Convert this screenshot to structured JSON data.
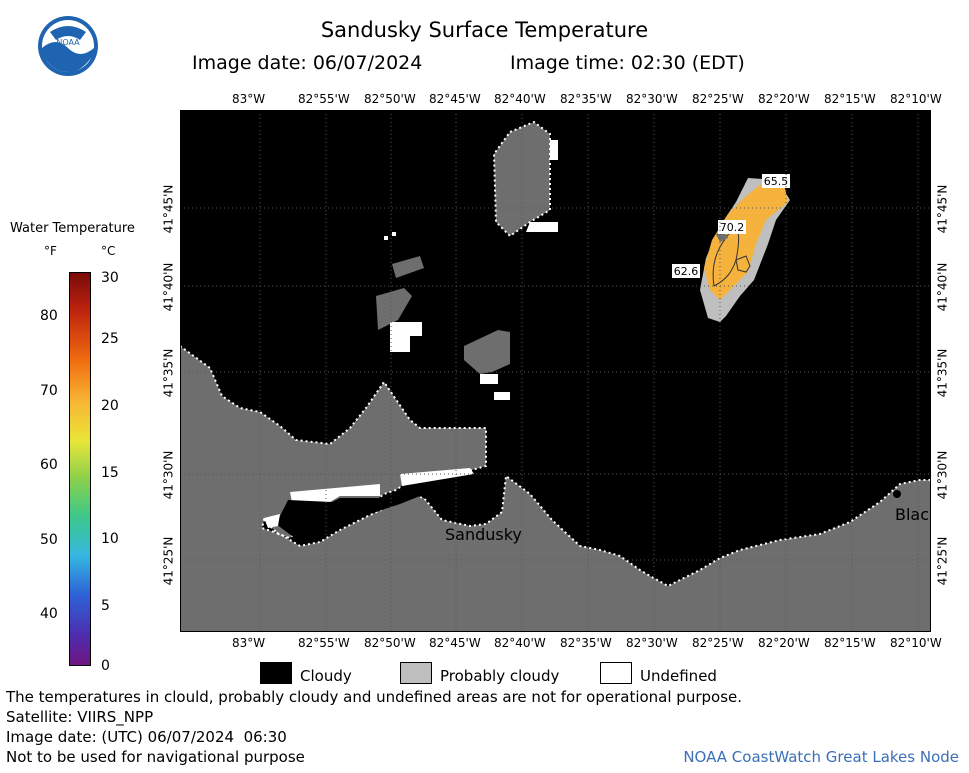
{
  "header": {
    "title": "Sandusky Surface Temperature",
    "image_date": "Image date: 06/07/2024",
    "image_time": "Image time: 02:30 (EDT)"
  },
  "logo": {
    "text": "NOAA"
  },
  "colorbar": {
    "title": "Water Temperature",
    "unit_f": "°F",
    "unit_c": "°C",
    "f_ticks": [
      "80",
      "70",
      "60",
      "50",
      "40"
    ],
    "c_ticks": [
      "30",
      "25",
      "20",
      "15",
      "10",
      "5",
      "0"
    ]
  },
  "axes": {
    "lon_top": [
      "83°W",
      "82°55'W",
      "82°50'W",
      "82°45'W",
      "82°40'W",
      "82°35'W",
      "82°30'W",
      "82°25'W",
      "82°20'W",
      "82°15'W",
      "82°10'W"
    ],
    "lon_bottom": [
      "83°W",
      "82°55'W",
      "82°50'W",
      "82°45'W",
      "82°40'W",
      "82°35'W",
      "82°30'W",
      "82°25'W",
      "82°20'W",
      "82°15'W",
      "82°10'W"
    ],
    "lat_left": [
      "41°45'N",
      "41°40'N",
      "41°35'N",
      "41°30'N",
      "41°25'N"
    ],
    "lat_right": [
      "41°45'N",
      "41°40'N",
      "41°35'N",
      "41°30'N",
      "41°25'N"
    ]
  },
  "map": {
    "place_labels": [
      "Sandusky",
      "Blac"
    ],
    "contour_labels": [
      "65.5",
      "70.2",
      "62.6"
    ]
  },
  "legend": {
    "items": [
      {
        "label": "Cloudy",
        "color": "#000000"
      },
      {
        "label": "Probably cloudy",
        "color": "#bfbfbf"
      },
      {
        "label": "Undefined",
        "color": "#ffffff"
      }
    ]
  },
  "footer": {
    "disclaimer": "The temperatures in clould, probably cloudy and undefined areas are not for operational purpose.",
    "satellite": "Satellite: VIIRS_NPP",
    "utc_date": "Image date: (UTC) 06/07/2024  06:30",
    "nav_warning": "Not to be used for navigational purpose",
    "credit": "NOAA CoastWatch Great Lakes Node"
  },
  "colors": {
    "cloud": "#000000",
    "land": "#6e6e6e",
    "probably_cloudy": "#bfbfbf",
    "water_warm": "#f5b23c"
  }
}
